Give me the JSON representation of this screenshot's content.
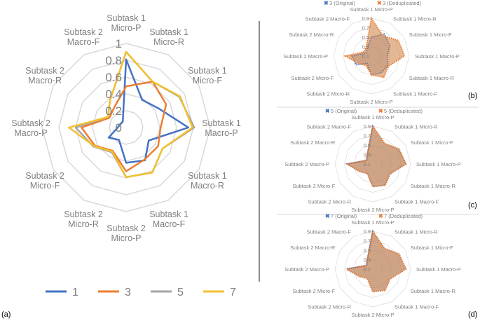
{
  "chart_data": [
    {
      "panel": "(a)",
      "type": "radar",
      "categories": [
        "Subtask 1 Micro-P",
        "Subtask 1 Micro-R",
        "Subtask 1 Micro-F",
        "Subtask 1 Macro-P",
        "Subtask 1 Macro-R",
        "Subtask 1 Macro-F",
        "Subtask 2 Micro-P",
        "Subtask 2 Micro-R",
        "Subtask 2 Micro-F",
        "Subtask 2 Macro-P",
        "Subtask 2 Macro-R",
        "Subtask 2 Macro-F"
      ],
      "rlim": [
        0,
        1
      ],
      "ticks": [
        "0",
        "0.2",
        "0.4",
        "0.6",
        "0.8",
        "1"
      ],
      "grid": true,
      "legend": "bottom",
      "series": [
        {
          "name": "1",
          "color": "#4472c4",
          "values": [
            0.81,
            0.38,
            0.45,
            0.74,
            0.31,
            0.45,
            0.42,
            0.17,
            0.24,
            0.1,
            0.08,
            0.08
          ]
        },
        {
          "name": "3",
          "color": "#ed7d31",
          "values": [
            0.49,
            0.63,
            0.55,
            0.41,
            0.44,
            0.44,
            0.52,
            0.32,
            0.43,
            0.53,
            0.23,
            0.28
          ]
        },
        {
          "name": "5",
          "color": "#a5a5a5",
          "values": [
            0.9,
            0.63,
            0.73,
            0.81,
            0.5,
            0.62,
            0.59,
            0.34,
            0.45,
            0.6,
            0.25,
            0.38
          ]
        },
        {
          "name": "7",
          "color": "#f2c12e",
          "values": [
            0.9,
            0.63,
            0.74,
            0.79,
            0.5,
            0.62,
            0.59,
            0.33,
            0.44,
            0.68,
            0.25,
            0.38
          ]
        }
      ]
    },
    {
      "panel": "(b)",
      "type": "radar",
      "categories": [
        "Subtask 1 Micro-P",
        "Subtask 1 Micro-R",
        "Subtask 1 Micro-F",
        "Subtask 1 Macro-P",
        "Subtask 1 Macro-R",
        "Subtask 1 Macro-F",
        "Subtask 2 Micro-P",
        "Subtask 2 Micro-R",
        "Subtask 2 Micro-F",
        "Subtask 2 Macro-P",
        "Subtask 2 Macro-R",
        "Subtask 2 Macro-F"
      ],
      "rlim": [
        0.1,
        0.9
      ],
      "ticks": [
        "0.1",
        "0.3",
        "0.5",
        "0.7",
        "0.9"
      ],
      "grid": true,
      "legend": "top",
      "series": [
        {
          "name": "3 (Original)",
          "color": "#4472c4",
          "values": [
            0.5,
            0.64,
            0.55,
            0.44,
            0.5,
            0.51,
            0.5,
            0.28,
            0.47,
            0.51,
            0.23,
            0.28
          ]
        },
        {
          "name": "3 (Deduplicated)",
          "color": "#ed7d31",
          "values": [
            0.9,
            0.59,
            0.76,
            0.8,
            0.52,
            0.62,
            0.5,
            0.33,
            0.41,
            0.65,
            0.28,
            0.32
          ]
        }
      ]
    },
    {
      "panel": "(c)",
      "type": "radar",
      "categories": [
        "Subtask 1 Micro-P",
        "Subtask 1 Micro-R",
        "Subtask 1 Micro-F",
        "Subtask 1 Macro-P",
        "Subtask 1 Macro-R",
        "Subtask 1 Macro-F",
        "Subtask 2 Micro-P",
        "Subtask 2 Micro-R",
        "Subtask 2 Micro-F",
        "Subtask 2 Macro-P",
        "Subtask 2 Macro-R",
        "Subtask 2 Macro-F"
      ],
      "rlim": [
        0.1,
        0.9
      ],
      "ticks": [
        "0.1",
        "0.3",
        "0.5",
        "0.7",
        "0.9"
      ],
      "grid": true,
      "legend": "top",
      "series": [
        {
          "name": "5 (Original)",
          "color": "#4472c4",
          "values": [
            0.9,
            0.6,
            0.73,
            0.8,
            0.52,
            0.62,
            0.58,
            0.33,
            0.42,
            0.64,
            0.25,
            0.33
          ]
        },
        {
          "name": "5 (Deduplicated)",
          "color": "#ed7d31",
          "values": [
            0.9,
            0.6,
            0.74,
            0.8,
            0.52,
            0.62,
            0.58,
            0.33,
            0.42,
            0.65,
            0.25,
            0.33
          ]
        }
      ]
    },
    {
      "panel": "(d)",
      "type": "radar",
      "categories": [
        "Subtask 1 Micro-P",
        "Subtask 1 Micro-R",
        "Subtask 1 Micro-F",
        "Subtask 1 Macro-P",
        "Subtask 1 Macro-R",
        "Subtask 1 Macro-F",
        "Subtask 2 Micro-P",
        "Subtask 2 Micro-R",
        "Subtask 2 Micro-F",
        "Subtask 2 Macro-P",
        "Subtask 2 Macro-R",
        "Subtask 2 Macro-F"
      ],
      "rlim": [
        0.1,
        0.9
      ],
      "ticks": [
        "0.1",
        "0.3",
        "0.5",
        "0.7",
        "0.9"
      ],
      "grid": true,
      "legend": "top",
      "series": [
        {
          "name": "7 (Original)",
          "color": "#4472c4",
          "values": [
            0.9,
            0.6,
            0.74,
            0.8,
            0.52,
            0.62,
            0.58,
            0.33,
            0.42,
            0.66,
            0.25,
            0.33
          ]
        },
        {
          "name": "7 (Deduplicated)",
          "color": "#ed7d31",
          "values": [
            0.9,
            0.6,
            0.74,
            0.8,
            0.52,
            0.62,
            0.58,
            0.33,
            0.42,
            0.65,
            0.25,
            0.33
          ]
        }
      ]
    }
  ]
}
